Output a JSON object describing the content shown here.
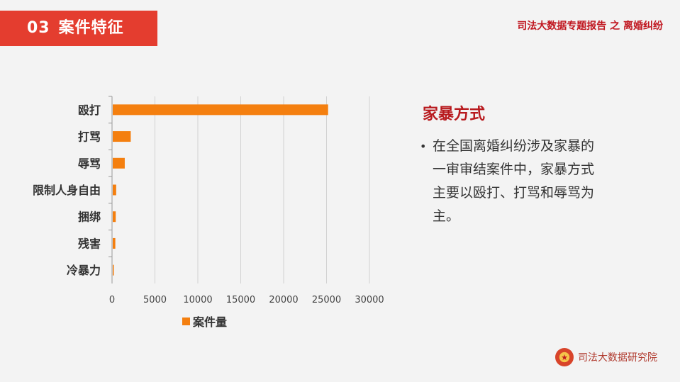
{
  "header": {
    "section_number": "03",
    "section_title": "案件特征",
    "report_title": "司法大数据专题报告 之 离婚纠纷"
  },
  "chart_data": {
    "type": "bar",
    "orientation": "horizontal",
    "categories": [
      "殴打",
      "打骂",
      "辱骂",
      "限制人身自由",
      "捆绑",
      "残害",
      "冷暴力"
    ],
    "series": [
      {
        "name": "案件量",
        "values": [
          25100,
          2100,
          1400,
          400,
          350,
          300,
          80
        ],
        "color": "#f47f0f"
      }
    ],
    "xlim": [
      0,
      30000
    ],
    "xticks": [
      "0",
      "5000",
      "10000",
      "15000",
      "20000",
      "25000",
      "30000"
    ],
    "grid": true,
    "legend": "bottom"
  },
  "side": {
    "title": "家暴方式",
    "bullet": "在全国离婚纠纷涉及家暴的一审审结案件中，家暴方式主要以殴打、打骂和辱骂为主。"
  },
  "footer": {
    "brand": "司法大数据研究院",
    "emblem_icon": "court-emblem-icon"
  }
}
